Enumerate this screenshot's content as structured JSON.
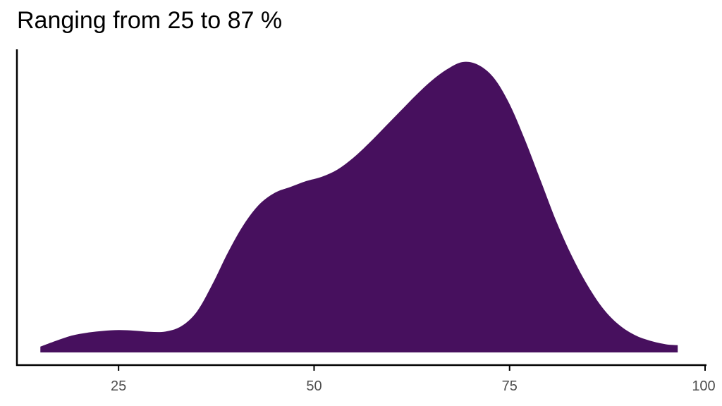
{
  "chart_data": {
    "type": "area",
    "title": "Ranging from 25 to 87 %",
    "xlabel": "",
    "ylabel": "",
    "xlim": [
      12,
      100
    ],
    "ylim": [
      0,
      1
    ],
    "x_ticks": [
      25,
      50,
      75,
      100
    ],
    "grid": false,
    "legend": "none",
    "fill_color": "#47105E",
    "series": [
      {
        "x": [
          15,
          17,
          19,
          21,
          23,
          25,
          27,
          29,
          31,
          33,
          35,
          37,
          39,
          41,
          43,
          45,
          47,
          49,
          51,
          53,
          55,
          57,
          59,
          61,
          63,
          65,
          67,
          69,
          71,
          73,
          75,
          77,
          79,
          81,
          83,
          85,
          87,
          89,
          91,
          93,
          95,
          96.5
        ],
        "y": [
          0.02,
          0.04,
          0.058,
          0.068,
          0.074,
          0.077,
          0.075,
          0.071,
          0.072,
          0.09,
          0.14,
          0.235,
          0.345,
          0.44,
          0.51,
          0.55,
          0.57,
          0.59,
          0.605,
          0.63,
          0.67,
          0.72,
          0.775,
          0.83,
          0.885,
          0.935,
          0.975,
          1.0,
          0.99,
          0.945,
          0.855,
          0.73,
          0.59,
          0.45,
          0.33,
          0.23,
          0.15,
          0.095,
          0.06,
          0.04,
          0.028,
          0.025
        ]
      }
    ]
  }
}
